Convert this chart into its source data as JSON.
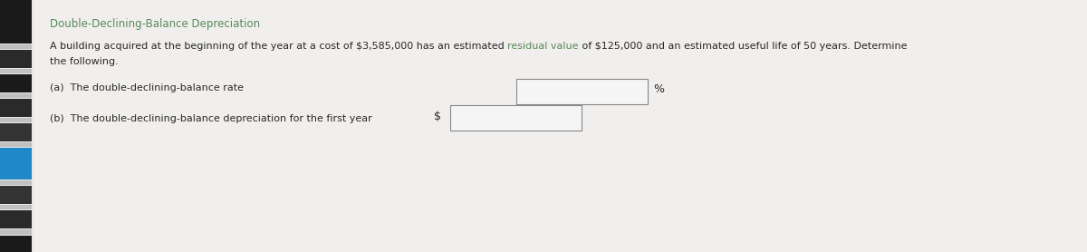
{
  "title": "Double-Declining-Balance Depreciation",
  "title_color": "#5a8a5a",
  "body_line1_before": "A building acquired at the beginning of the year at a cost of $3,585,000 has an estimated ",
  "body_line1_colored": "residual value",
  "body_line1_after": " of $125,000 and an estimated useful life of 50 years. Determine",
  "body_line2": "the following.",
  "residual_value_color": "#5a8a5a",
  "text_color": "#2a2a2a",
  "question_a": "(a)  The double-declining-balance rate",
  "question_b": "(b)  The double-declining-balance depreciation for the first year",
  "percent_label": "%",
  "dollar_label": "$",
  "background_main": "#e8e8e8",
  "background_content": "#f0efed",
  "sidebar_colors": [
    "#2a2a2a",
    "#383838",
    "#444444",
    "#2090c0",
    "#444444",
    "#383838",
    "#2a2a2a",
    "#2a2a2a",
    "#383838",
    "#444444",
    "#383838",
    "#2a2a2a"
  ],
  "sidebar_gap_color": "#c0c0c0",
  "title_fontsize": 8.5,
  "body_fontsize": 8.0,
  "question_fontsize": 8.0
}
